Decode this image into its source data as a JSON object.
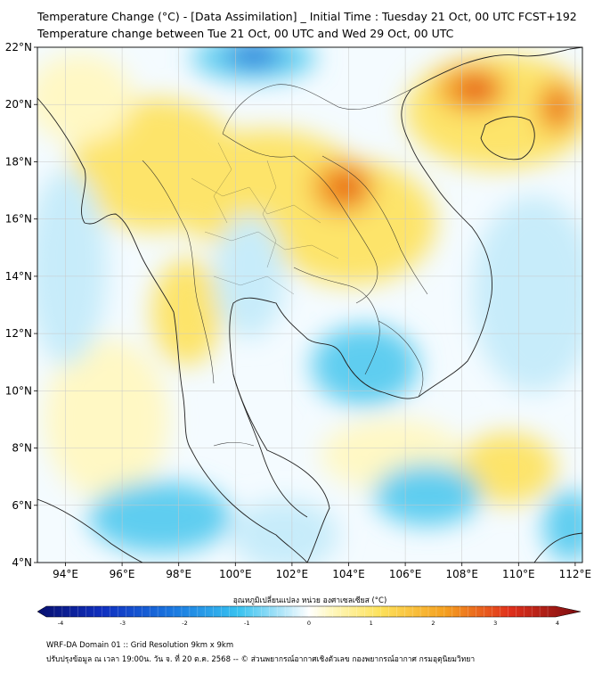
{
  "header": {
    "title_line1": "Temperature Change (°C) - [Data Assimilation] _ Initial Time : Tuesday 21 Oct, 00 UTC FCST+192",
    "title_line2": "Temperature change between Tue 21 Oct, 00 UTC and Wed 29 Oct, 00 UTC"
  },
  "map": {
    "lat_labels": [
      "22°N",
      "20°N",
      "18°N",
      "16°N",
      "14°N",
      "12°N",
      "10°N",
      "8°N",
      "6°N",
      "4°N"
    ],
    "lon_labels": [
      "94°E",
      "96°E",
      "98°E",
      "100°E",
      "102°E",
      "104°E",
      "106°E",
      "108°E",
      "110°E",
      "112°E"
    ],
    "colors": {
      "very_warm": "#e0201c",
      "warm": "#f39a1e",
      "mild_warm": "#fde46a",
      "slight_warm": "#fff8c4",
      "neutral": "#f4fbff",
      "slight_cool": "#c7ecfa",
      "cool": "#5fcdf0",
      "cold": "#1466d6",
      "border": "#222222",
      "grid": "#c8c8c8"
    }
  },
  "colorbar": {
    "title": "อุณหภูมิเปลี่ยนแปลง หน่วย องศาเซลเซียส (°C)",
    "ticks": [
      "-4",
      "-3",
      "-2",
      "-1",
      "0",
      "1",
      "2",
      "3",
      "4"
    ]
  },
  "footer": {
    "line1": "WRF-DA Domain 01 :: Grid Resolution 9km x 9km",
    "line2": "ปรับปรุงข้อมูล ณ เวลา 19:00น. วัน จ. ที่ 20 ต.ค. 2568 -- © ส่วนพยากรณ์อากาศเชิงตัวเลข กองพยากรณ์อากาศ กรมอุตุนิยมวิทยา"
  }
}
